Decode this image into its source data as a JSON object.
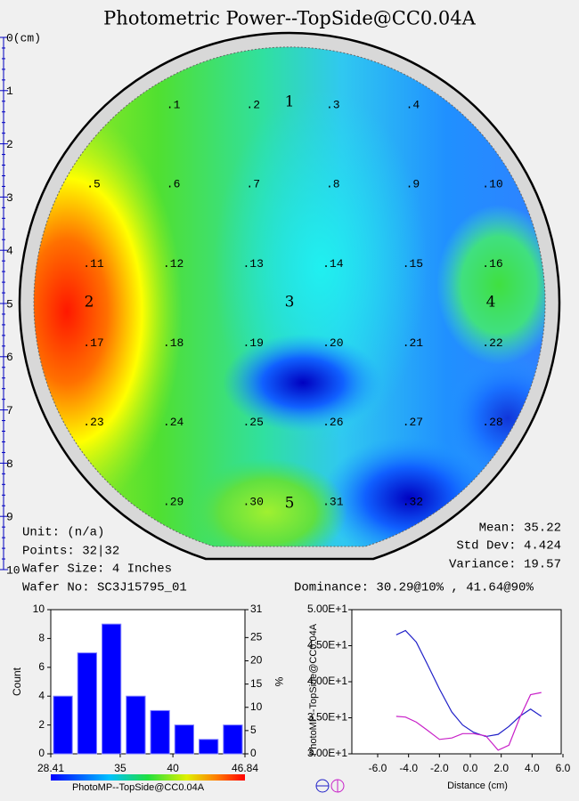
{
  "title": "Photometric Power--TopSide@CC0.04A",
  "wafer": {
    "ruler_ticks": [
      {
        "value": 0,
        "label": "0(cm)"
      },
      1,
      2,
      3,
      4,
      5,
      6,
      7,
      8,
      9,
      10
    ],
    "zones": [
      "1",
      "2",
      "3",
      "4",
      "5"
    ],
    "points": [
      ".1",
      ".2",
      ".3",
      ".4",
      ".5",
      ".6",
      ".7",
      ".8",
      ".9",
      ".10",
      ".11",
      ".12",
      ".13",
      ".14",
      ".15",
      ".16",
      ".17",
      ".18",
      ".19",
      ".20",
      ".21",
      ".22",
      ".23",
      ".24",
      ".25",
      ".26",
      ".27",
      ".28",
      ".29",
      ".30",
      ".31",
      ".32"
    ]
  },
  "info": {
    "left": [
      "Unit:  (n/a)",
      "Points: 32|32",
      "Wafer Size: 4 Inches",
      "Wafer No: SC3J15795_01"
    ],
    "right": [
      "Mean: 35.22",
      "Std Dev: 4.424",
      "Variance: 19.57"
    ],
    "dominance": "Dominance: 30.29@10% , 41.64@90%"
  },
  "chart_data": [
    {
      "type": "histogram",
      "bins": [
        28.41,
        30.71,
        33.02,
        35.32,
        37.63,
        39.93,
        42.23,
        44.54,
        46.84
      ],
      "values": [
        4,
        7,
        9,
        4,
        3,
        2,
        1,
        2
      ],
      "color": "#0000ff",
      "xlim": [
        28.41,
        46.84
      ],
      "xticks": [
        28.41,
        35,
        40,
        46.84
      ],
      "ylim": [
        0,
        10
      ],
      "yticks": [
        0,
        2,
        4,
        6,
        8,
        10
      ],
      "y2lim": [
        0,
        31
      ],
      "y2ticks": [
        0,
        5,
        10,
        15,
        20,
        25,
        31
      ],
      "ylabel": "Count",
      "y2label": "%",
      "colorbar_label": "PhotoMP--TopSide@CC0.04A"
    },
    {
      "type": "line",
      "x": [
        -4.8,
        -4.2,
        -3.5,
        -2.8,
        -2.0,
        -1.2,
        -0.5,
        0.2,
        1.0,
        1.8,
        2.5,
        3.2,
        3.9,
        4.6
      ],
      "series": [
        {
          "color": "#2020c8",
          "values": [
            46.5,
            47.1,
            45.5,
            42.5,
            39.0,
            35.8,
            34.0,
            33.0,
            32.4,
            32.7,
            33.8,
            35.2,
            36.2,
            35.2
          ]
        },
        {
          "color": "#c820c8",
          "values": [
            35.2,
            35.1,
            34.4,
            33.3,
            32.0,
            32.2,
            32.8,
            32.8,
            32.5,
            30.5,
            31.2,
            35.0,
            38.2,
            38.5
          ]
        }
      ],
      "xlim": [
        -6,
        6
      ],
      "xticks": [
        {
          "value": -6,
          "label": "-6.0"
        },
        {
          "value": -4,
          "label": "-4.0"
        },
        {
          "value": -2,
          "label": "-2.0"
        },
        {
          "value": 0,
          "label": "0.0"
        },
        {
          "value": 2,
          "label": "2.0"
        },
        {
          "value": 4,
          "label": "4.0"
        },
        {
          "value": 6,
          "label": "6.0"
        }
      ],
      "ylim": [
        30,
        50
      ],
      "yticks": [
        {
          "value": 30,
          "label": "3.00E+1"
        },
        {
          "value": 35,
          "label": "3.50E+1"
        },
        {
          "value": 40,
          "label": "4.00E+1"
        },
        {
          "value": 45,
          "label": "4.50E+1"
        },
        {
          "value": 50,
          "label": "5.00E+1"
        }
      ],
      "xlabel": "Distance (cm)",
      "ylabel": "PhotoMP--TopSide@CC0.04A"
    }
  ]
}
